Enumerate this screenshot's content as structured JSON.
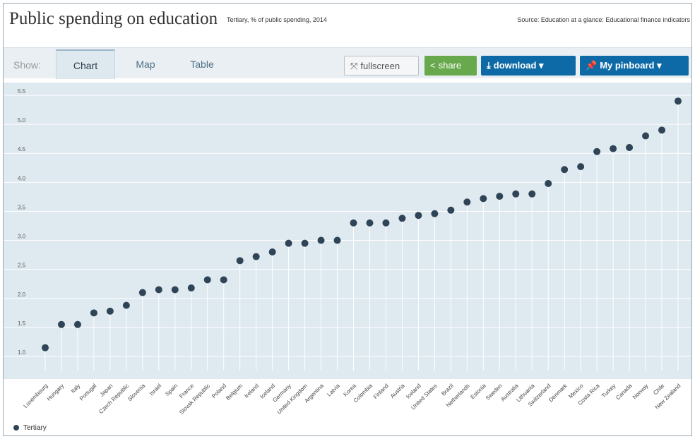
{
  "header": {
    "title": "Public spending on education",
    "subtitle": "Tertiary, % of public spending, 2014",
    "source": "Source: Education at a glance: Educational finance indicators"
  },
  "toolbar": {
    "show_label": "Show:",
    "tabs": [
      {
        "label": "Chart"
      },
      {
        "label": "Map"
      },
      {
        "label": "Table"
      }
    ],
    "fullscreen_label": "fullscreen",
    "share_label": "share",
    "download_label": "download ▾",
    "pinboard_label": "My pinboard ▾"
  },
  "colors": {
    "accent_blue": "#0d6aa6",
    "share_green": "#68a94d",
    "plot_bg": "#dfe9f0",
    "dot": "#2f4557"
  },
  "legend": {
    "label": "Tertiary"
  },
  "chart_data": {
    "type": "scatter",
    "ylim": [
      1.0,
      5.5
    ],
    "yticks": [
      "5.5",
      "5.0",
      "4.5",
      "4.0",
      "3.5",
      "3.0",
      "2.5",
      "2.0",
      "1.5",
      "1.0"
    ],
    "categories": [
      "Luxembourg",
      "Hungary",
      "Italy",
      "Portugal",
      "Japan",
      "Czech Republic",
      "Slovenia",
      "Israel",
      "Spain",
      "France",
      "Slovak Republic",
      "Poland",
      "Belgium",
      "Ireland",
      "Iceland",
      "Germany",
      "United Kingdom",
      "Argentina",
      "Latvia",
      "Korea",
      "Colombia",
      "Finland",
      "Austria",
      "Iceland",
      "United States",
      "Brazil",
      "Netherlands",
      "Estonia",
      "Sweden",
      "Australia",
      "Lithuania",
      "Switzerland",
      "Denmark",
      "Mexico",
      "Costa Rica",
      "Turkey",
      "Canada",
      "Norway",
      "Chile",
      "New Zealand"
    ],
    "series": [
      {
        "name": "Tertiary",
        "values": [
          1.15,
          1.55,
          1.55,
          1.75,
          1.78,
          1.88,
          2.1,
          2.15,
          2.15,
          2.18,
          2.32,
          2.32,
          2.65,
          2.72,
          2.8,
          2.95,
          2.95,
          3.0,
          3.0,
          3.3,
          3.3,
          3.3,
          3.38,
          3.43,
          3.46,
          3.52,
          3.66,
          3.72,
          3.76,
          3.8,
          3.8,
          3.98,
          4.22,
          4.27,
          4.53,
          4.58,
          4.6,
          4.8,
          4.9,
          5.4
        ]
      }
    ]
  }
}
